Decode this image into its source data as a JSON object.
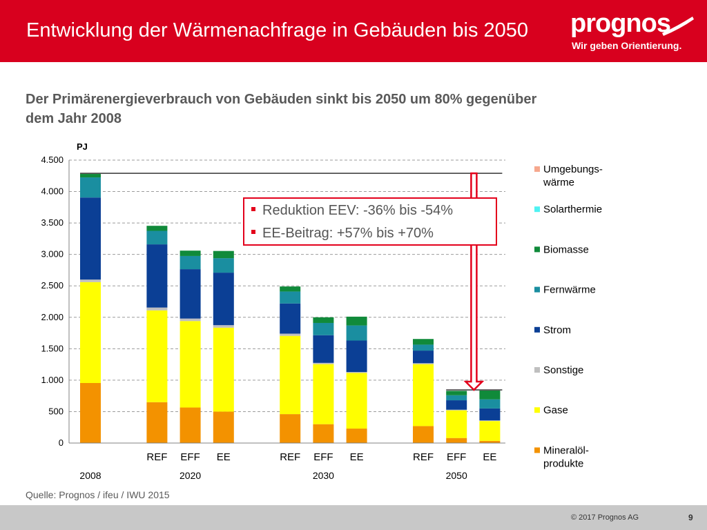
{
  "header": {
    "title": "Entwicklung der Wärmenachfrage in Gebäuden bis 2050"
  },
  "logo": {
    "wordmark": "prognos",
    "tagline": "Wir geben Orientierung."
  },
  "subtitle": "Der Primärenergieverbrauch von Gebäuden sinkt bis 2050 um 80% gegenüber dem Jahr 2008",
  "callout": {
    "items": [
      "Reduktion EEV: -36% bis -54%",
      "EE-Beitrag: +57% bis +70%"
    ]
  },
  "source": "Quelle: Prognos / ifeu / IWU 2015",
  "footer": {
    "copyright": "© 2017 Prognos AG",
    "page": "9"
  },
  "colors": {
    "header": "#d8001e",
    "callout_border": "#e3001b"
  },
  "chart_data": {
    "type": "bar",
    "stacked": true,
    "unit_label": "PJ",
    "ylim": [
      0,
      4500
    ],
    "yticks": [
      0,
      500,
      1000,
      1500,
      2000,
      2500,
      3000,
      3500,
      4000,
      4500
    ],
    "ytick_labels": [
      "0",
      "500",
      "1.000",
      "1.500",
      "2.000",
      "2.500",
      "3.000",
      "3.500",
      "4.000",
      "4.500"
    ],
    "grid": true,
    "legend_position": "right",
    "categories": [
      "",
      "REF",
      "EFF",
      "EE",
      "REF",
      "EFF",
      "EE",
      "REF",
      "EFF",
      "EE"
    ],
    "groups": [
      {
        "label": "2008",
        "first": 0,
        "last": 0
      },
      {
        "label": "2020",
        "first": 1,
        "last": 3
      },
      {
        "label": "2030",
        "first": 4,
        "last": 6
      },
      {
        "label": "2050",
        "first": 7,
        "last": 9
      }
    ],
    "series": [
      {
        "name": "Mineralöl-\nprodukte",
        "color": "#f39200",
        "values": [
          955,
          650,
          565,
          500,
          460,
          300,
          230,
          270,
          80,
          35
        ]
      },
      {
        "name": "Gase",
        "color": "#ffff00",
        "values": [
          1605,
          1460,
          1375,
          1335,
          1245,
          955,
          885,
          985,
          440,
          315
        ]
      },
      {
        "name": "Sonstige",
        "color": "#bfbfbf",
        "values": [
          40,
          45,
          40,
          40,
          35,
          20,
          15,
          15,
          10,
          10
        ]
      },
      {
        "name": "Strom",
        "color": "#0b3f95",
        "values": [
          1305,
          1005,
          785,
          835,
          480,
          440,
          500,
          200,
          150,
          190
        ]
      },
      {
        "name": "Fernwärme",
        "color": "#1a8ea0",
        "values": [
          320,
          215,
          210,
          230,
          190,
          195,
          240,
          95,
          80,
          145
        ]
      },
      {
        "name": "Biomasse",
        "color": "#108a3a",
        "values": [
          55,
          80,
          85,
          115,
          80,
          90,
          140,
          90,
          70,
          140
        ]
      },
      {
        "name": "Solarthermie",
        "color": "#4ff2f2",
        "values": [
          0,
          0,
          0,
          0,
          0,
          0,
          0,
          0,
          0,
          0
        ]
      },
      {
        "name": "Umgebungs-\nwärme",
        "color": "#f6a88e",
        "values": [
          0,
          0,
          0,
          0,
          0,
          0,
          0,
          0,
          0,
          0
        ]
      }
    ],
    "reference_lines": [
      {
        "value": 4290,
        "from": 0,
        "to": 9
      },
      {
        "value": 845,
        "from": 8,
        "to": 9
      }
    ],
    "arrow": {
      "from": 4290,
      "to": 845,
      "category": 9
    }
  }
}
